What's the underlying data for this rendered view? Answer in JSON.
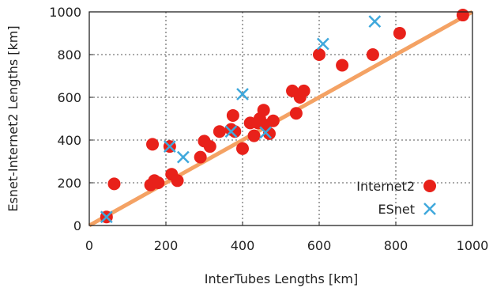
{
  "chart_data": {
    "type": "scatter",
    "title": "",
    "xlabel": "InterTubes Lengths [km]",
    "ylabel": "Esnet-Internet2 Lengths [km]",
    "xlim": [
      0,
      1000
    ],
    "ylim": [
      0,
      1000
    ],
    "x_ticks": [
      0,
      200,
      400,
      600,
      800,
      1000
    ],
    "y_ticks": [
      0,
      200,
      400,
      600,
      800,
      1000
    ],
    "grid": true,
    "legend_position": "bottom-right",
    "reference_line": {
      "from": [
        0,
        0
      ],
      "to": [
        1000,
        1000
      ],
      "color": "#f4a264"
    },
    "series": [
      {
        "name": "Internet2",
        "marker": "circle",
        "color": "#e8211a",
        "points": [
          [
            45,
            40
          ],
          [
            65,
            195
          ],
          [
            160,
            190
          ],
          [
            165,
            380
          ],
          [
            170,
            210
          ],
          [
            180,
            200
          ],
          [
            210,
            370
          ],
          [
            215,
            240
          ],
          [
            230,
            210
          ],
          [
            290,
            320
          ],
          [
            300,
            395
          ],
          [
            315,
            370
          ],
          [
            340,
            440
          ],
          [
            370,
            450
          ],
          [
            375,
            515
          ],
          [
            380,
            440
          ],
          [
            400,
            360
          ],
          [
            420,
            480
          ],
          [
            430,
            420
          ],
          [
            440,
            480
          ],
          [
            445,
            500
          ],
          [
            455,
            540
          ],
          [
            460,
            470
          ],
          [
            470,
            430
          ],
          [
            480,
            490
          ],
          [
            530,
            630
          ],
          [
            540,
            525
          ],
          [
            550,
            600
          ],
          [
            560,
            630
          ],
          [
            600,
            800
          ],
          [
            660,
            750
          ],
          [
            740,
            800
          ],
          [
            810,
            900
          ],
          [
            975,
            985
          ]
        ]
      },
      {
        "name": "ESnet",
        "marker": "x",
        "color": "#3fa8dc",
        "points": [
          [
            45,
            40
          ],
          [
            210,
            370
          ],
          [
            245,
            320
          ],
          [
            370,
            440
          ],
          [
            400,
            615
          ],
          [
            460,
            435
          ],
          [
            610,
            850
          ],
          [
            745,
            955
          ]
        ]
      }
    ]
  }
}
